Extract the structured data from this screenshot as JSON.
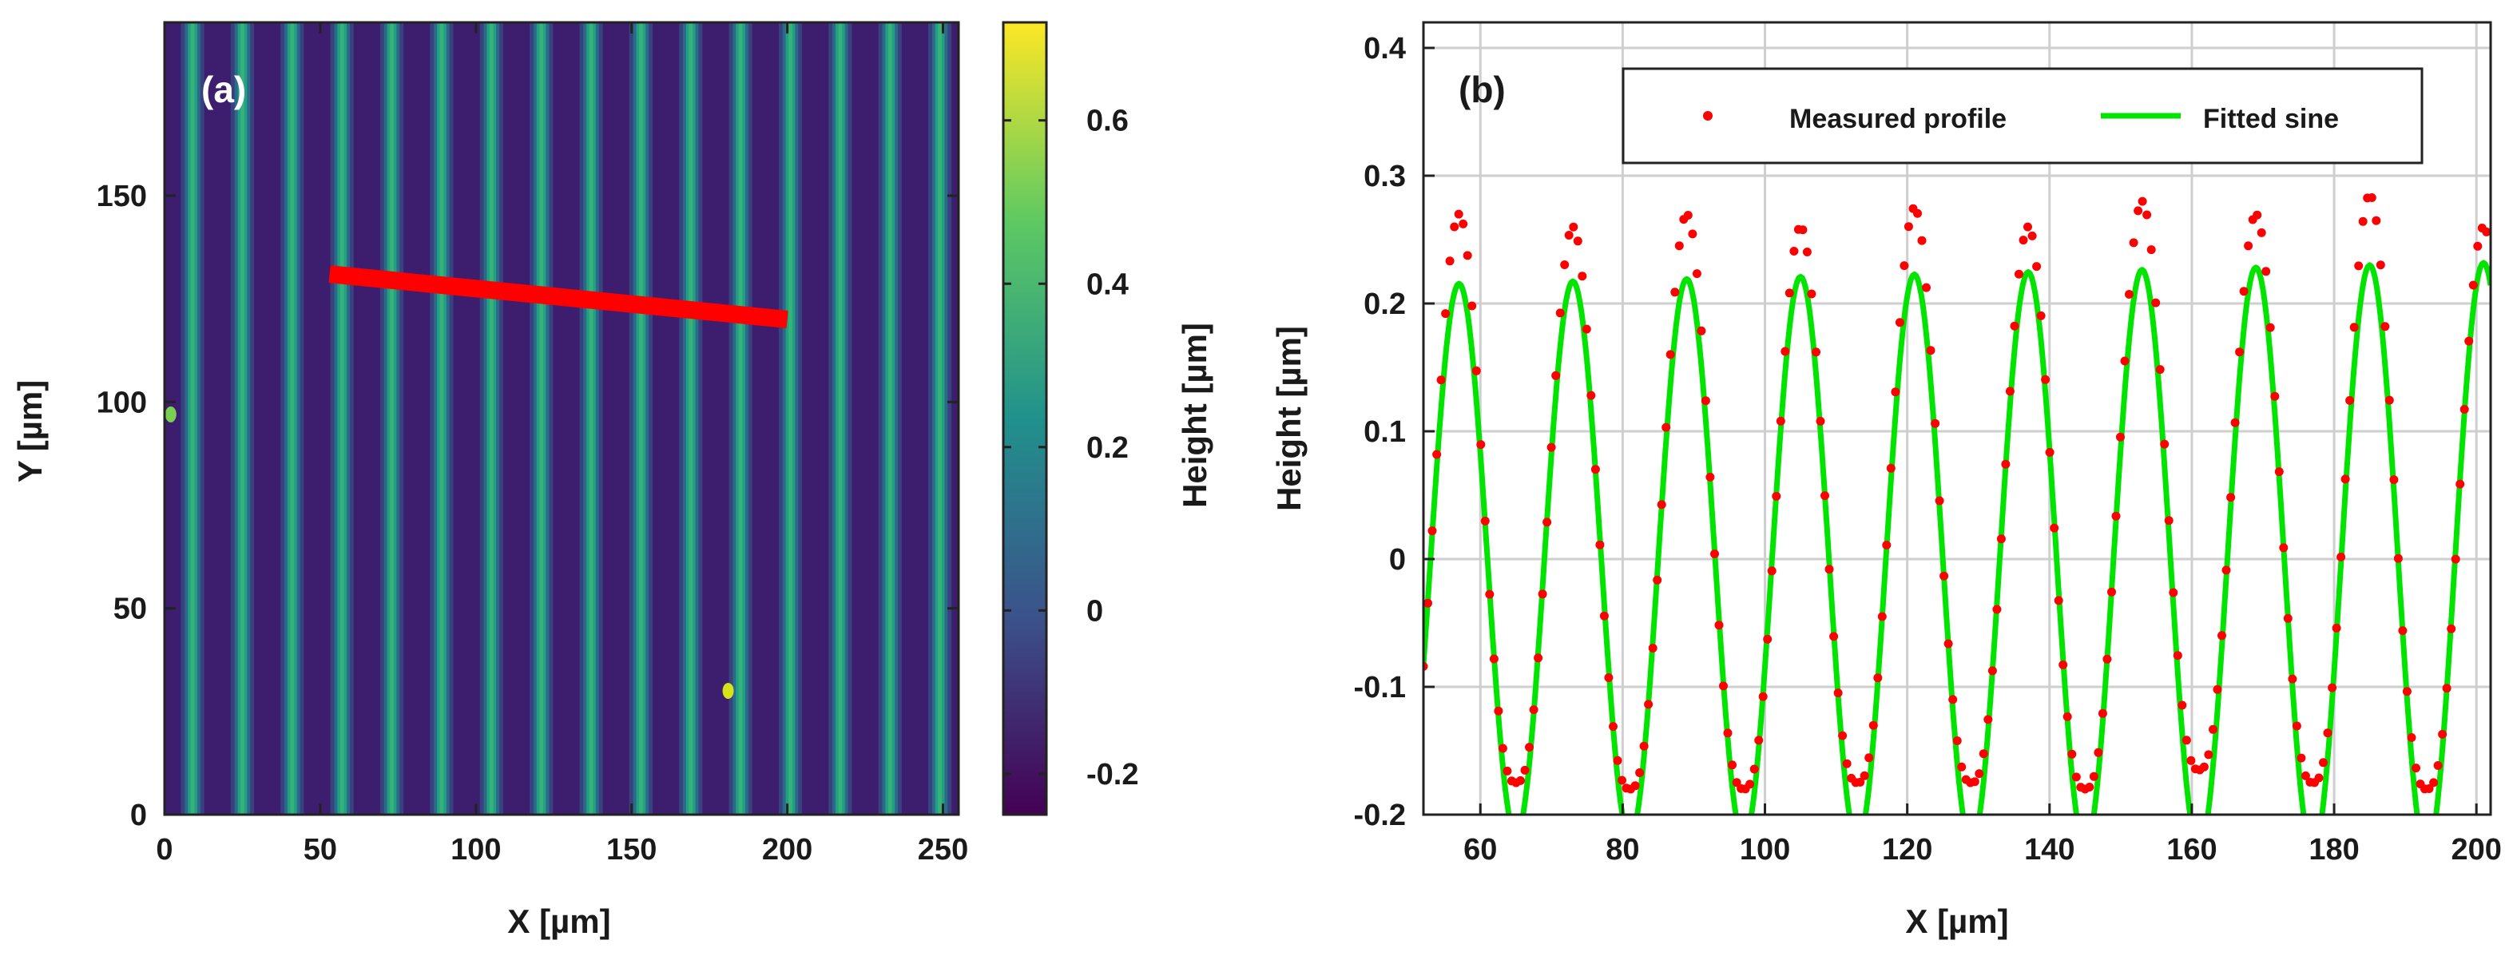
{
  "chart_data": [
    {
      "panel_label": "(a)",
      "type": "heatmap",
      "description_values": "AFM height map of a periodic line grating (stripes parallel to Y)",
      "xlabel": "X [µm]",
      "ylabel": "Y [µm]",
      "xlim": [
        0,
        255
      ],
      "ylim": [
        0,
        192
      ],
      "xticks": [
        0,
        50,
        100,
        150,
        200,
        250
      ],
      "yticks": [
        0,
        50,
        100,
        150
      ],
      "stripe_period_um": 16,
      "stripe_phase_um": 9,
      "line_profile": {
        "x": [
          53,
          200
        ],
        "y": [
          131,
          120
        ],
        "color": "#ff0000"
      },
      "defects": [
        {
          "x": 181,
          "y": 30,
          "value": 0.7
        },
        {
          "x": 2,
          "y": 97,
          "value": 0.55
        }
      ],
      "colorbar": {
        "label": "Height [µm]",
        "range": [
          -0.25,
          0.72
        ],
        "ticks": [
          -0.2,
          0,
          0.2,
          0.4,
          0.6
        ],
        "tick_labels": [
          "-0.2",
          "0",
          "0.2",
          "0.4",
          "0.6"
        ],
        "colormap": [
          "#440154",
          "#3b528b",
          "#21918c",
          "#5ec962",
          "#fde725"
        ]
      }
    },
    {
      "panel_label": "(b)",
      "type": "line",
      "xlabel": "X [µm]",
      "ylabel": "Height [µm]",
      "xlim": [
        52,
        202
      ],
      "ylim": [
        -0.2,
        0.42
      ],
      "xticks": [
        60,
        80,
        100,
        120,
        140,
        160,
        180,
        200
      ],
      "yticks": [
        -0.2,
        -0.1,
        0,
        0.1,
        0.2,
        0.3,
        0.4
      ],
      "ytick_labels": [
        "-0.2",
        "-0.1",
        "0",
        "0.1",
        "0.2",
        "0.3",
        "0.4"
      ],
      "grid": true,
      "legend": {
        "placement": "top-right"
      },
      "series": [
        {
          "name": "Measured profile",
          "style": "points",
          "color": "#ff0000",
          "period": 16,
          "peak_x": [
            57,
            73,
            89,
            105,
            121,
            137,
            153,
            169,
            185,
            201
          ],
          "peak_y": [
            0.27,
            0.26,
            0.27,
            0.26,
            0.275,
            0.26,
            0.28,
            0.27,
            0.285,
            0.26
          ],
          "trough_y": [
            -0.175,
            -0.18,
            -0.18,
            -0.175,
            -0.175,
            -0.18,
            -0.165,
            -0.175,
            -0.18
          ],
          "x_start": 52,
          "x_end": 202,
          "step": 0.62
        },
        {
          "name": "Fitted sine",
          "style": "line",
          "color": "#00e400",
          "amplitude_start": 0.215,
          "amplitude_end": 0.232,
          "offset": 0,
          "period": 16,
          "peak_x": 57,
          "x_start": 52,
          "x_end": 202
        }
      ]
    }
  ]
}
